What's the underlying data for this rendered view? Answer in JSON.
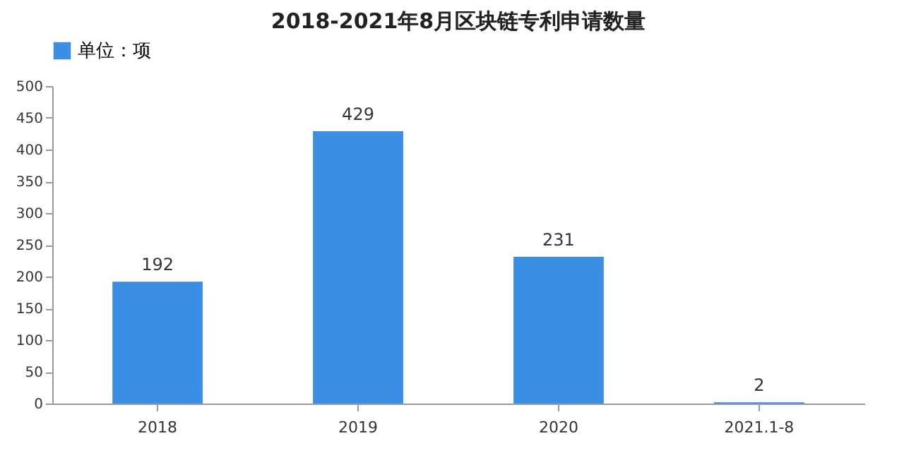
{
  "chart_data": {
    "type": "bar",
    "title": "2018-2021年8月区块链专利申请数量",
    "categories": [
      "2018",
      "2019",
      "2020",
      "2021.1-8"
    ],
    "series": [
      {
        "name": "单位：项",
        "color": "#3a8ee6",
        "values": [
          192,
          429,
          231,
          2
        ]
      }
    ],
    "ylim": [
      0,
      500
    ],
    "yticks": [
      0,
      50,
      100,
      150,
      200,
      250,
      300,
      350,
      400,
      450,
      500
    ],
    "data_labels": true,
    "legend": "top",
    "grid": false
  }
}
